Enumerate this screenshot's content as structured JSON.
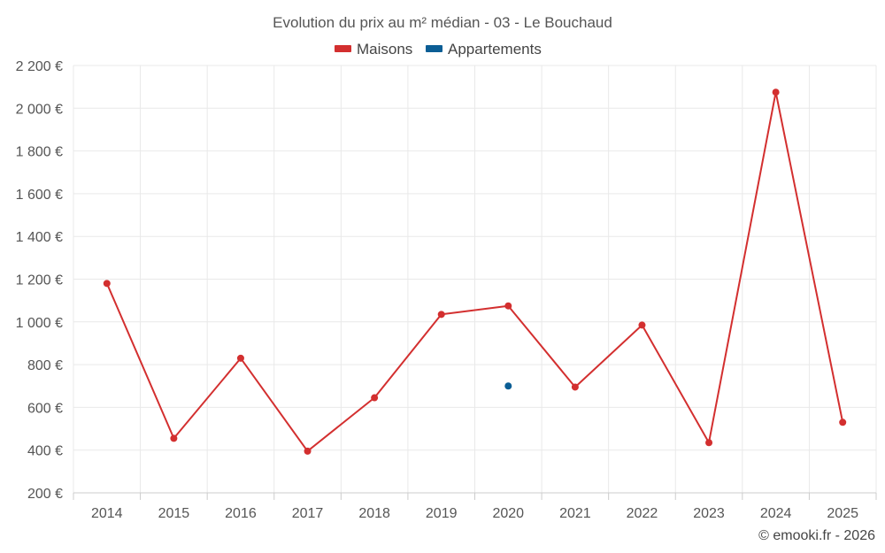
{
  "chart_data": {
    "type": "line",
    "title": "Evolution du prix au m² médian - 03 - Le Bouchaud",
    "categories": [
      "2014",
      "2015",
      "2016",
      "2017",
      "2018",
      "2019",
      "2020",
      "2021",
      "2022",
      "2023",
      "2024",
      "2025"
    ],
    "y_ticks": [
      "200 €",
      "400 €",
      "600 €",
      "800 €",
      "1 000 €",
      "1 200 €",
      "1 400 €",
      "1 600 €",
      "1 800 €",
      "2 000 €",
      "2 200 €"
    ],
    "ylim": [
      200,
      2200
    ],
    "grid": true,
    "legend_position": "top-center",
    "series": [
      {
        "name": "Maisons",
        "color": "#d32f2f",
        "values": [
          1180,
          455,
          830,
          395,
          645,
          1035,
          1075,
          695,
          985,
          435,
          2075,
          530
        ]
      },
      {
        "name": "Appartements",
        "color": "#0b5e95",
        "values": [
          null,
          null,
          null,
          null,
          null,
          null,
          700,
          null,
          null,
          null,
          null,
          null
        ]
      }
    ]
  },
  "credit": "© emooki.fr - 2026"
}
